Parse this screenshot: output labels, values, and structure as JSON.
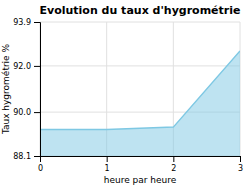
{
  "chart_data": {
    "type": "area",
    "title": "Evolution du taux d'hygrométrie",
    "xlabel": "heure par heure",
    "ylabel": "Taux hygrométrie %",
    "x": [
      0,
      1,
      2,
      3
    ],
    "values": [
      89.25,
      89.25,
      89.35,
      92.65
    ],
    "color": "#7ec8e3",
    "xlim": [
      0,
      3
    ],
    "ylim": [
      88.1,
      93.9
    ],
    "xticks": [
      0,
      1,
      2,
      3
    ],
    "yticks": [
      88.1,
      {
        "value": 90.0,
        "label": "90.0"
      },
      {
        "value": 92.0,
        "label": "92.0"
      },
      93.9
    ],
    "grid": true
  }
}
